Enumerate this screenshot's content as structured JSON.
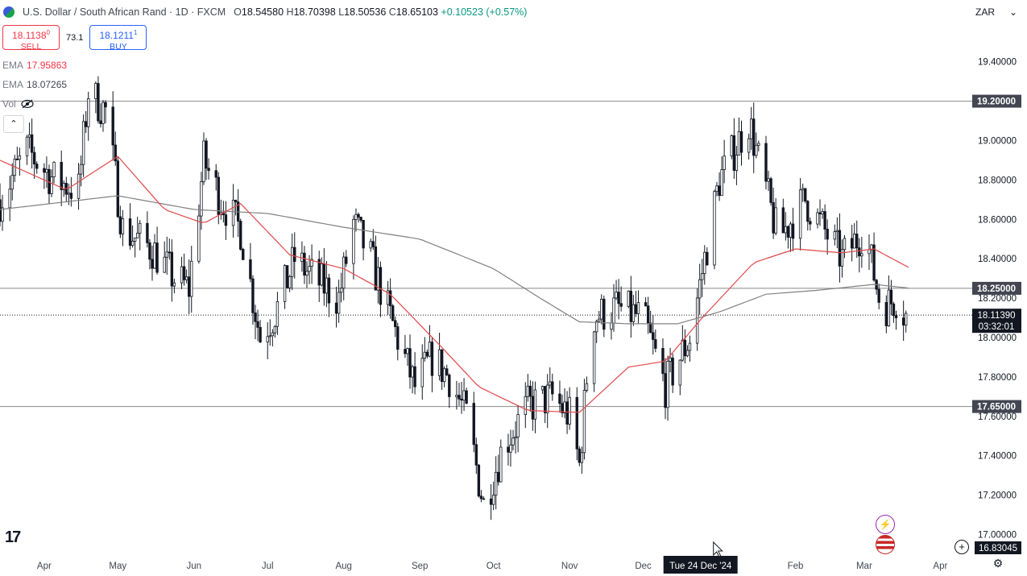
{
  "header": {
    "title": "U.S. Dollar / South African Rand · 1D · FXCM",
    "open_label": "O",
    "open": "18.54580",
    "high_label": "H",
    "high": "18.70398",
    "low_label": "L",
    "low": "18.50536",
    "close_label": "C",
    "close": "18.65103",
    "change": "+0.10523 (+0.57%)"
  },
  "trade": {
    "sell_price": "18.1138",
    "sell_price_small": "0",
    "sell_label": "SELL",
    "spread": "73.1",
    "buy_price": "18.1211",
    "buy_price_small": "1",
    "buy_label": "BUY"
  },
  "indicators": [
    {
      "name": "EMA",
      "value": "17.95863"
    },
    {
      "name": "EMA",
      "value": "18.07265"
    },
    {
      "name": "Vol",
      "value": ""
    }
  ],
  "currency_selector": {
    "value": "ZAR",
    "icon": "chevron-down-icon"
  },
  "crosshair_date": "Tue 24 Dec '24",
  "colors": {
    "up": "#131722",
    "down": "#131722",
    "ema_fast": "#e0484a",
    "ema_slow": "#808080",
    "level_line": "#888888",
    "price_label_bg": "#131722",
    "accent": "#2962ff"
  },
  "chart_data": {
    "type": "candlestick",
    "ylim": [
      16.9,
      19.55
    ],
    "yticks": [
      "17.00000",
      "17.20000",
      "17.40000",
      "17.60000",
      "17.80000",
      "18.00000",
      "18.20000",
      "18.40000",
      "18.60000",
      "18.80000",
      "19.00000",
      "19.20000",
      "19.40000"
    ],
    "xticks": [
      {
        "label": "Apr",
        "date": "2024-04-01"
      },
      {
        "label": "May",
        "date": "2024-05-01"
      },
      {
        "label": "Jun",
        "date": "2024-06-01"
      },
      {
        "label": "Jul",
        "date": "2024-07-01"
      },
      {
        "label": "Aug",
        "date": "2024-08-01"
      },
      {
        "label": "Sep",
        "date": "2024-09-01"
      },
      {
        "label": "Oct",
        "date": "2024-10-01"
      },
      {
        "label": "Nov",
        "date": "2024-11-01"
      },
      {
        "label": "Dec",
        "date": "2024-12-01"
      },
      {
        "label": "Feb",
        "date": "2025-02-01"
      },
      {
        "label": "Mar",
        "date": "2025-03-01"
      },
      {
        "label": "Apr",
        "date": "2025-04-01"
      }
    ],
    "levels": [
      {
        "value": 19.2,
        "label": "19.20000"
      },
      {
        "value": 18.25,
        "label": "18.25000"
      },
      {
        "value": 17.65,
        "label": "17.65000"
      }
    ],
    "current_price": {
      "value": 18.1139,
      "label": "18.11390",
      "countdown": "03:32:01"
    },
    "bottom_label": "16.83045",
    "ema_fast_anchors": [
      [
        "2024-03-14",
        18.9
      ],
      [
        "2024-04-10",
        18.75
      ],
      [
        "2024-05-01",
        18.92
      ],
      [
        "2024-05-20",
        18.65
      ],
      [
        "2024-06-05",
        18.58
      ],
      [
        "2024-06-20",
        18.68
      ],
      [
        "2024-07-10",
        18.42
      ],
      [
        "2024-08-01",
        18.35
      ],
      [
        "2024-08-20",
        18.22
      ],
      [
        "2024-09-10",
        17.95
      ],
      [
        "2024-09-25",
        17.75
      ],
      [
        "2024-10-15",
        17.63
      ],
      [
        "2024-11-05",
        17.62
      ],
      [
        "2024-11-25",
        17.85
      ],
      [
        "2024-12-10",
        17.88
      ],
      [
        "2024-12-25",
        18.1
      ],
      [
        "2025-01-15",
        18.38
      ],
      [
        "2025-02-01",
        18.45
      ],
      [
        "2025-02-20",
        18.43
      ],
      [
        "2025-03-05",
        18.45
      ],
      [
        "2025-03-20",
        18.35
      ]
    ],
    "ema_slow_anchors": [
      [
        "2024-03-14",
        18.65
      ],
      [
        "2024-05-01",
        18.72
      ],
      [
        "2024-06-01",
        18.65
      ],
      [
        "2024-07-01",
        18.63
      ],
      [
        "2024-08-01",
        18.56
      ],
      [
        "2024-09-01",
        18.5
      ],
      [
        "2024-10-01",
        18.35
      ],
      [
        "2024-10-20",
        18.2
      ],
      [
        "2024-11-05",
        18.08
      ],
      [
        "2024-11-25",
        18.07
      ],
      [
        "2024-12-15",
        18.07
      ],
      [
        "2025-01-01",
        18.13
      ],
      [
        "2025-01-20",
        18.22
      ],
      [
        "2025-02-10",
        18.24
      ],
      [
        "2025-03-05",
        18.27
      ],
      [
        "2025-03-20",
        18.25
      ]
    ],
    "price_path": [
      [
        "2024-03-14",
        18.7
      ],
      [
        "2024-03-25",
        18.95
      ],
      [
        "2024-04-05",
        18.8
      ],
      [
        "2024-04-15",
        18.75
      ],
      [
        "2024-04-19",
        19.25
      ],
      [
        "2024-04-26",
        19.15
      ],
      [
        "2024-05-03",
        18.55
      ],
      [
        "2024-05-15",
        18.45
      ],
      [
        "2024-05-24",
        18.3
      ],
      [
        "2024-05-30",
        18.25
      ],
      [
        "2024-06-05",
        18.9
      ],
      [
        "2024-06-12",
        18.7
      ],
      [
        "2024-06-20",
        18.55
      ],
      [
        "2024-06-28",
        18.0
      ],
      [
        "2024-07-05",
        18.15
      ],
      [
        "2024-07-12",
        18.4
      ],
      [
        "2024-07-20",
        18.3
      ],
      [
        "2024-07-30",
        18.2
      ],
      [
        "2024-08-05",
        18.58
      ],
      [
        "2024-08-12",
        18.4
      ],
      [
        "2024-08-20",
        18.1
      ],
      [
        "2024-08-30",
        17.75
      ],
      [
        "2024-09-06",
        17.9
      ],
      [
        "2024-09-13",
        17.8
      ],
      [
        "2024-09-20",
        17.6
      ],
      [
        "2024-09-27",
        17.15
      ],
      [
        "2024-10-05",
        17.45
      ],
      [
        "2024-10-15",
        17.65
      ],
      [
        "2024-10-25",
        17.7
      ],
      [
        "2024-11-01",
        17.6
      ],
      [
        "2024-11-05",
        17.35
      ],
      [
        "2024-11-10",
        18.1
      ],
      [
        "2024-11-20",
        18.15
      ],
      [
        "2024-12-01",
        18.1
      ],
      [
        "2024-12-10",
        17.75
      ],
      [
        "2024-12-20",
        18.0
      ],
      [
        "2025-01-01",
        18.8
      ],
      [
        "2025-01-13",
        19.1
      ],
      [
        "2025-01-25",
        18.5
      ],
      [
        "2025-02-05",
        18.7
      ],
      [
        "2025-02-20",
        18.4
      ],
      [
        "2025-03-01",
        18.55
      ],
      [
        "2025-03-08",
        18.15
      ],
      [
        "2025-03-14",
        18.2
      ],
      [
        "2025-03-18",
        18.11
      ]
    ],
    "candle_start": "2024-03-14",
    "candle_end": "2025-03-18",
    "visible_end": "2025-04-14"
  }
}
